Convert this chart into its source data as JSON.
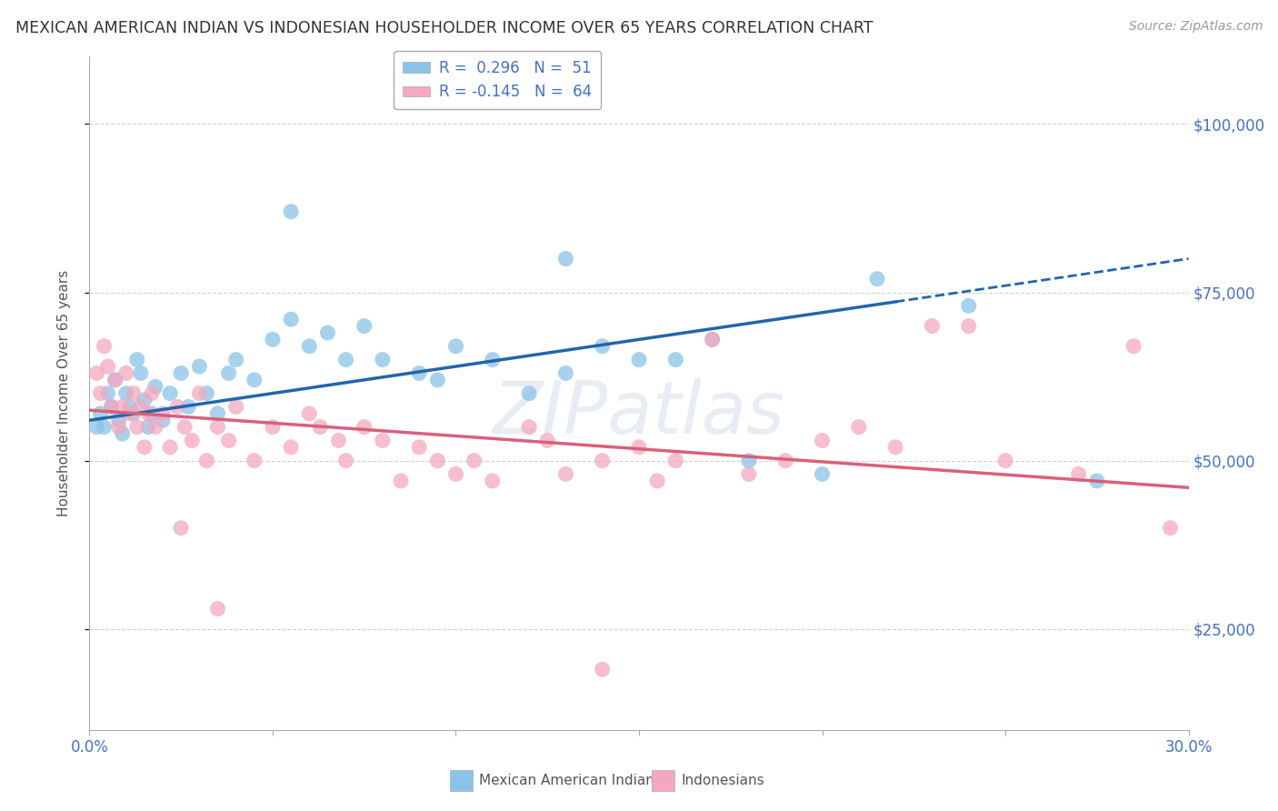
{
  "title": "MEXICAN AMERICAN INDIAN VS INDONESIAN HOUSEHOLDER INCOME OVER 65 YEARS CORRELATION CHART",
  "source": "Source: ZipAtlas.com",
  "ylabel": "Householder Income Over 65 years",
  "xlim": [
    0.0,
    30.0
  ],
  "ylim": [
    10000,
    110000
  ],
  "yticks": [
    25000,
    50000,
    75000,
    100000
  ],
  "ytick_labels": [
    "$25,000",
    "$50,000",
    "$75,000",
    "$100,000"
  ],
  "blue_color": "#89c4e8",
  "pink_color": "#f4a8bf",
  "trend_blue": "#2166ac",
  "trend_pink": "#d9607a",
  "background_color": "#ffffff",
  "grid_color": "#cccccc",
  "blue_scatter": [
    [
      0.3,
      57000
    ],
    [
      0.4,
      55000
    ],
    [
      0.5,
      60000
    ],
    [
      0.6,
      58000
    ],
    [
      0.7,
      62000
    ],
    [
      0.8,
      56000
    ],
    [
      0.9,
      54000
    ],
    [
      1.0,
      60000
    ],
    [
      1.1,
      58000
    ],
    [
      1.2,
      57000
    ],
    [
      1.3,
      65000
    ],
    [
      1.4,
      63000
    ],
    [
      1.5,
      59000
    ],
    [
      1.6,
      55000
    ],
    [
      1.7,
      57000
    ],
    [
      1.8,
      61000
    ],
    [
      2.0,
      56000
    ],
    [
      2.2,
      60000
    ],
    [
      2.5,
      63000
    ],
    [
      2.7,
      58000
    ],
    [
      3.0,
      64000
    ],
    [
      3.2,
      60000
    ],
    [
      3.5,
      57000
    ],
    [
      3.8,
      63000
    ],
    [
      4.0,
      65000
    ],
    [
      4.5,
      62000
    ],
    [
      5.0,
      68000
    ],
    [
      5.5,
      71000
    ],
    [
      6.0,
      67000
    ],
    [
      6.5,
      69000
    ],
    [
      7.0,
      65000
    ],
    [
      7.5,
      70000
    ],
    [
      8.0,
      65000
    ],
    [
      9.0,
      63000
    ],
    [
      9.5,
      62000
    ],
    [
      10.0,
      67000
    ],
    [
      11.0,
      65000
    ],
    [
      12.0,
      60000
    ],
    [
      13.0,
      63000
    ],
    [
      14.0,
      67000
    ],
    [
      15.0,
      65000
    ],
    [
      16.0,
      65000
    ],
    [
      17.0,
      68000
    ],
    [
      18.0,
      50000
    ],
    [
      20.0,
      48000
    ],
    [
      21.5,
      77000
    ],
    [
      24.0,
      73000
    ],
    [
      27.5,
      47000
    ],
    [
      5.5,
      87000
    ],
    [
      13.0,
      80000
    ],
    [
      0.2,
      55000
    ]
  ],
  "pink_scatter": [
    [
      0.2,
      63000
    ],
    [
      0.3,
      60000
    ],
    [
      0.4,
      67000
    ],
    [
      0.5,
      64000
    ],
    [
      0.6,
      58000
    ],
    [
      0.7,
      62000
    ],
    [
      0.8,
      55000
    ],
    [
      0.9,
      58000
    ],
    [
      1.0,
      63000
    ],
    [
      1.1,
      57000
    ],
    [
      1.2,
      60000
    ],
    [
      1.3,
      55000
    ],
    [
      1.4,
      58000
    ],
    [
      1.5,
      52000
    ],
    [
      1.6,
      57000
    ],
    [
      1.7,
      60000
    ],
    [
      1.8,
      55000
    ],
    [
      2.0,
      57000
    ],
    [
      2.2,
      52000
    ],
    [
      2.4,
      58000
    ],
    [
      2.6,
      55000
    ],
    [
      2.8,
      53000
    ],
    [
      3.0,
      60000
    ],
    [
      3.2,
      50000
    ],
    [
      3.5,
      55000
    ],
    [
      3.8,
      53000
    ],
    [
      4.0,
      58000
    ],
    [
      4.5,
      50000
    ],
    [
      5.0,
      55000
    ],
    [
      5.5,
      52000
    ],
    [
      6.0,
      57000
    ],
    [
      6.3,
      55000
    ],
    [
      6.8,
      53000
    ],
    [
      7.0,
      50000
    ],
    [
      7.5,
      55000
    ],
    [
      8.0,
      53000
    ],
    [
      8.5,
      47000
    ],
    [
      9.0,
      52000
    ],
    [
      9.5,
      50000
    ],
    [
      10.0,
      48000
    ],
    [
      10.5,
      50000
    ],
    [
      11.0,
      47000
    ],
    [
      12.0,
      55000
    ],
    [
      12.5,
      53000
    ],
    [
      13.0,
      48000
    ],
    [
      14.0,
      50000
    ],
    [
      15.0,
      52000
    ],
    [
      15.5,
      47000
    ],
    [
      16.0,
      50000
    ],
    [
      17.0,
      68000
    ],
    [
      18.0,
      48000
    ],
    [
      19.0,
      50000
    ],
    [
      20.0,
      53000
    ],
    [
      21.0,
      55000
    ],
    [
      22.0,
      52000
    ],
    [
      23.0,
      70000
    ],
    [
      24.0,
      70000
    ],
    [
      25.0,
      50000
    ],
    [
      27.0,
      48000
    ],
    [
      28.5,
      67000
    ],
    [
      29.5,
      40000
    ],
    [
      3.5,
      28000
    ],
    [
      14.0,
      19000
    ],
    [
      2.5,
      40000
    ]
  ]
}
